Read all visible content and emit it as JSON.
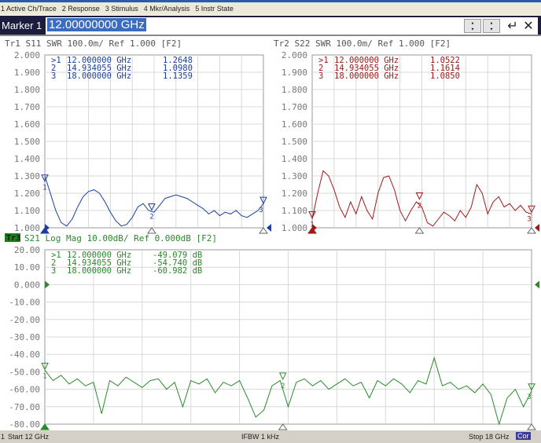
{
  "menu": [
    "1 Active Ch/Trace",
    "2 Response",
    "3 Stimulus",
    "4 Mkr/Analysis",
    "5 Instr State"
  ],
  "entry": {
    "label": "Marker 1",
    "value": "12.00000000 GHz"
  },
  "status": {
    "channel": "1",
    "start": "Start 12 GHz",
    "ifbw": "IFBW 1 kHz",
    "stop": "Stop 18 GHz",
    "cor": "Cor"
  },
  "chart_data": [
    {
      "type": "line",
      "trace": "Tr1",
      "title": "Tr1  S11  SWR 100.0m/  Ref 1.000  [F2]",
      "color": "#1a3fa0",
      "xlim": [
        12,
        18
      ],
      "ylim": [
        1.0,
        2.0
      ],
      "yticks": [
        "2.000",
        "1.900",
        "1.800",
        "1.700",
        "1.600",
        "1.500",
        "1.400",
        "1.300",
        "1.200",
        "1.100",
        "1.000"
      ],
      "markers": [
        {
          "id": ">1",
          "freq": "12.000000 GHz",
          "value": "1.2648"
        },
        {
          "id": "2",
          "freq": "14.934055 GHz",
          "value": "1.0980"
        },
        {
          "id": "3",
          "freq": "18.000000 GHz",
          "value": "1.1359"
        }
      ],
      "marker_x": [
        12,
        14.934055,
        18
      ],
      "marker_y": [
        1.2648,
        1.098,
        1.1359
      ],
      "x_start": 12,
      "x_step": 0.15,
      "values": [
        1.3,
        1.2,
        1.1,
        1.03,
        1.01,
        1.05,
        1.12,
        1.18,
        1.21,
        1.22,
        1.2,
        1.15,
        1.09,
        1.04,
        1.01,
        1.02,
        1.06,
        1.12,
        1.14,
        1.1,
        1.09,
        1.13,
        1.17,
        1.18,
        1.19,
        1.18,
        1.17,
        1.15,
        1.13,
        1.11,
        1.08,
        1.1,
        1.07,
        1.09,
        1.08,
        1.1,
        1.07,
        1.06,
        1.08,
        1.1,
        1.14
      ]
    },
    {
      "type": "line",
      "trace": "Tr2",
      "title": "Tr2  S22  SWR 100.0m/  Ref 1.000  [F2]",
      "color": "#a01818",
      "xlim": [
        12,
        18
      ],
      "ylim": [
        1.0,
        2.0
      ],
      "yticks": [
        "2.000",
        "1.900",
        "1.800",
        "1.700",
        "1.600",
        "1.500",
        "1.400",
        "1.300",
        "1.200",
        "1.100",
        "1.000"
      ],
      "markers": [
        {
          "id": ">1",
          "freq": "12.000000 GHz",
          "value": "1.0522"
        },
        {
          "id": "2",
          "freq": "14.934055 GHz",
          "value": "1.1614"
        },
        {
          "id": "3",
          "freq": "18.000000 GHz",
          "value": "1.0850"
        }
      ],
      "marker_x": [
        12,
        14.934055,
        18
      ],
      "marker_y": [
        1.0522,
        1.1614,
        1.085
      ],
      "x_start": 12,
      "x_step": 0.15,
      "values": [
        1.05,
        1.2,
        1.33,
        1.3,
        1.22,
        1.12,
        1.06,
        1.15,
        1.08,
        1.18,
        1.1,
        1.05,
        1.2,
        1.29,
        1.3,
        1.22,
        1.1,
        1.04,
        1.1,
        1.15,
        1.12,
        1.03,
        1.01,
        1.05,
        1.09,
        1.07,
        1.04,
        1.1,
        1.06,
        1.12,
        1.25,
        1.2,
        1.08,
        1.15,
        1.18,
        1.12,
        1.14,
        1.1,
        1.13,
        1.09,
        1.08
      ]
    },
    {
      "type": "line",
      "trace": "Tr3",
      "title": "S21  Log Mag 10.00dB/  Ref 0.000dB  [F2]",
      "color": "#2a8a2a",
      "xlim": [
        12,
        18
      ],
      "ylim": [
        -80,
        20
      ],
      "yticks": [
        "20.00",
        "10.00",
        "0.000",
        "-10.00",
        "-20.00",
        "-30.00",
        "-40.00",
        "-50.00",
        "-60.00",
        "-70.00",
        "-80.00"
      ],
      "markers": [
        {
          "id": ">1",
          "freq": "12.000000 GHz",
          "value": "-49.079 dB"
        },
        {
          "id": "2",
          "freq": "14.934055 GHz",
          "value": "-54.740 dB"
        },
        {
          "id": "3",
          "freq": "18.000000 GHz",
          "value": "-60.982 dB"
        }
      ],
      "marker_x": [
        12,
        14.934055,
        18
      ],
      "marker_y": [
        -49.079,
        -54.74,
        -60.982
      ],
      "x_start": 12,
      "x_step": 0.1,
      "values": [
        -49,
        -55,
        -52,
        -57,
        -54,
        -58,
        -56,
        -74,
        -55,
        -58,
        -53,
        -56,
        -59,
        -55,
        -54,
        -60,
        -56,
        -70,
        -55,
        -57,
        -54,
        -62,
        -56,
        -58,
        -55,
        -65,
        -76,
        -72,
        -58,
        -55,
        -70,
        -56,
        -54,
        -58,
        -55,
        -60,
        -57,
        -54,
        -58,
        -56,
        -65,
        -55,
        -58,
        -54,
        -57,
        -62,
        -55,
        -57,
        -42,
        -58,
        -56,
        -60,
        -58,
        -62,
        -57,
        -63,
        -80,
        -65,
        -60,
        -70,
        -61
      ]
    }
  ]
}
